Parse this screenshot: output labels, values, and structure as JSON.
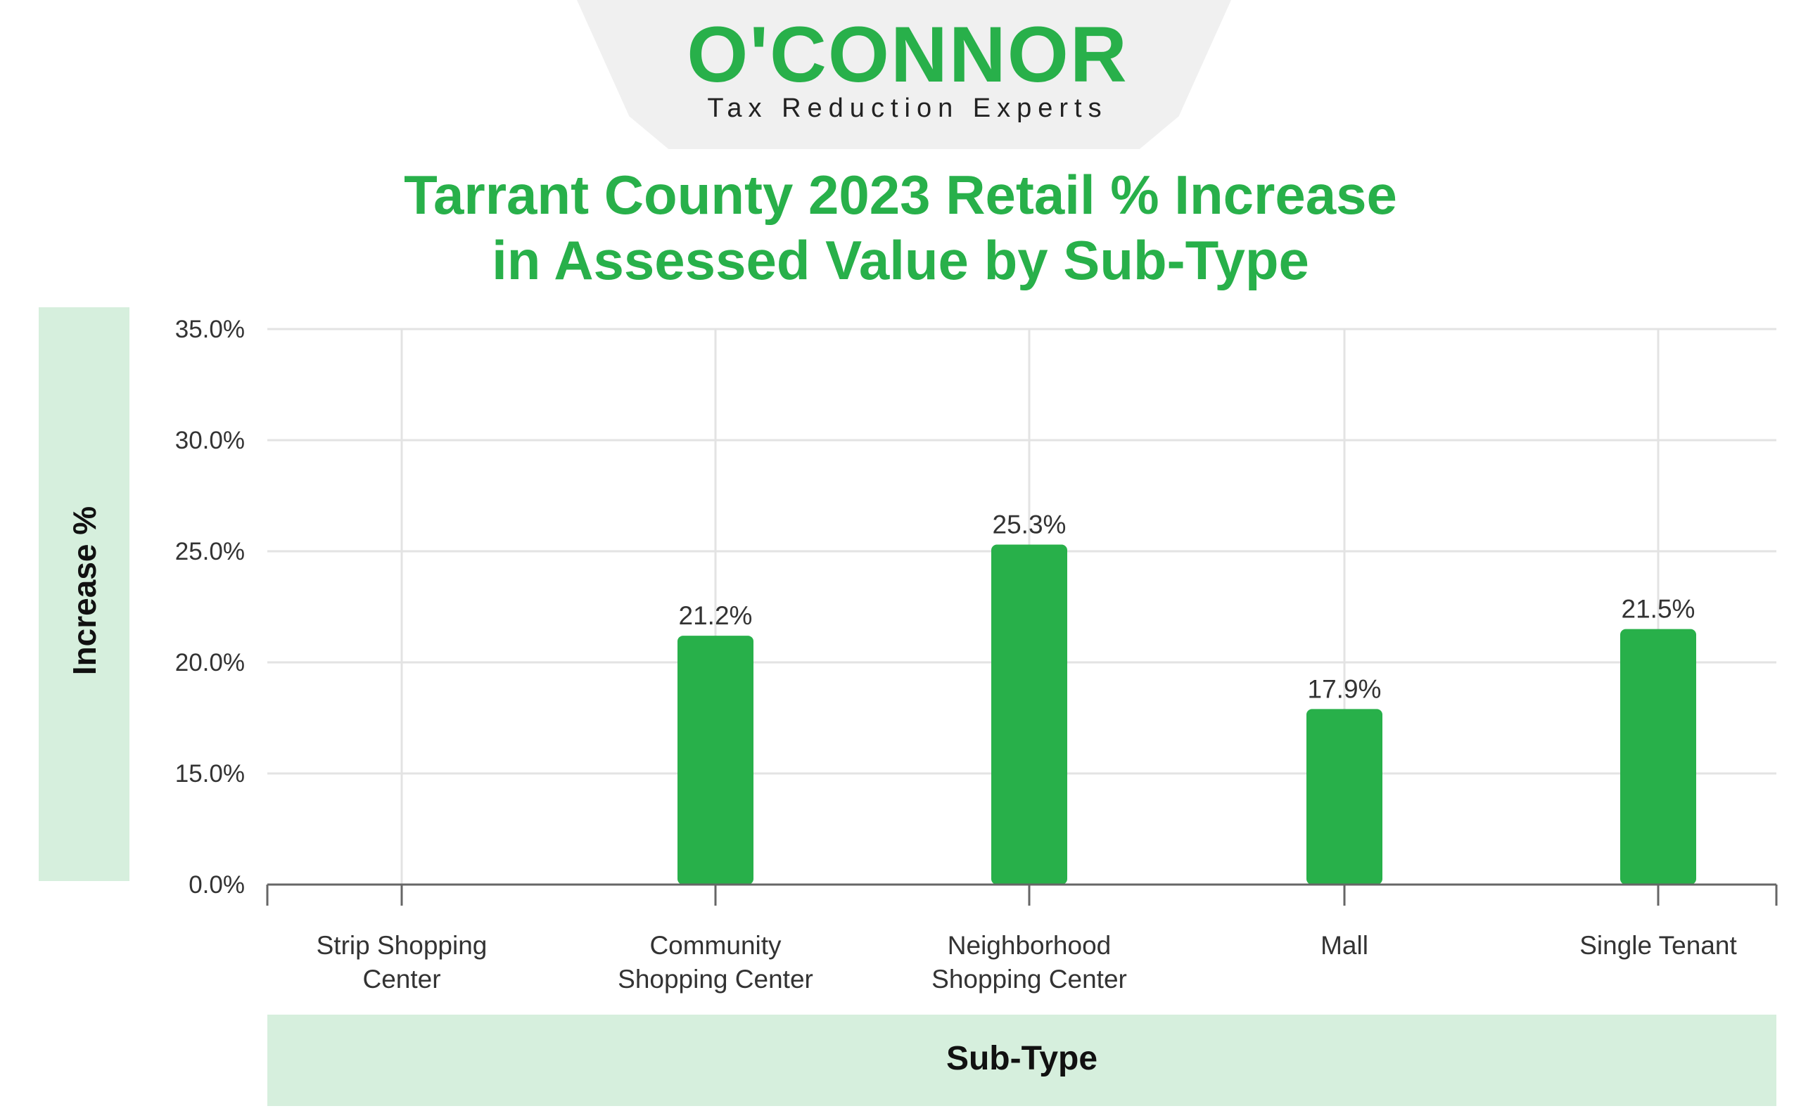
{
  "logo": {
    "wordmark": "O'CONNOR",
    "tagline": "Tax Reduction Experts",
    "color": "#28b04a"
  },
  "chart_data": {
    "type": "bar",
    "title": "Tarrant County 2023 Retail % Increase in Assessed Value by Sub-Type",
    "title_lines": [
      "Tarrant County 2023 Retail % Increase",
      "in Assessed Value by Sub-Type"
    ],
    "xlabel": "Sub-Type",
    "ylabel": "Increase %",
    "categories": [
      [
        "Strip Shopping",
        "Center"
      ],
      [
        "Community",
        "Shopping Center"
      ],
      [
        "Neighborhood",
        "Shopping Center"
      ],
      [
        "Mall"
      ],
      [
        "Single Tenant"
      ]
    ],
    "values": [
      null,
      21.2,
      25.3,
      17.9,
      21.5
    ],
    "value_labels": [
      "",
      "21.2%",
      "25.3%",
      "17.9%",
      "21.5%"
    ],
    "y_ticks": [
      0,
      15,
      20,
      25,
      30,
      35
    ],
    "y_tick_labels": [
      "0.0%",
      "15.0%",
      "20.0%",
      "25.0%",
      "30.0%",
      "35.0%"
    ],
    "ylim": [
      0,
      35
    ],
    "grid": true,
    "bar_color": "#28b04a",
    "grid_color": "#e3e3e3",
    "band_color": "#d6efdd"
  }
}
